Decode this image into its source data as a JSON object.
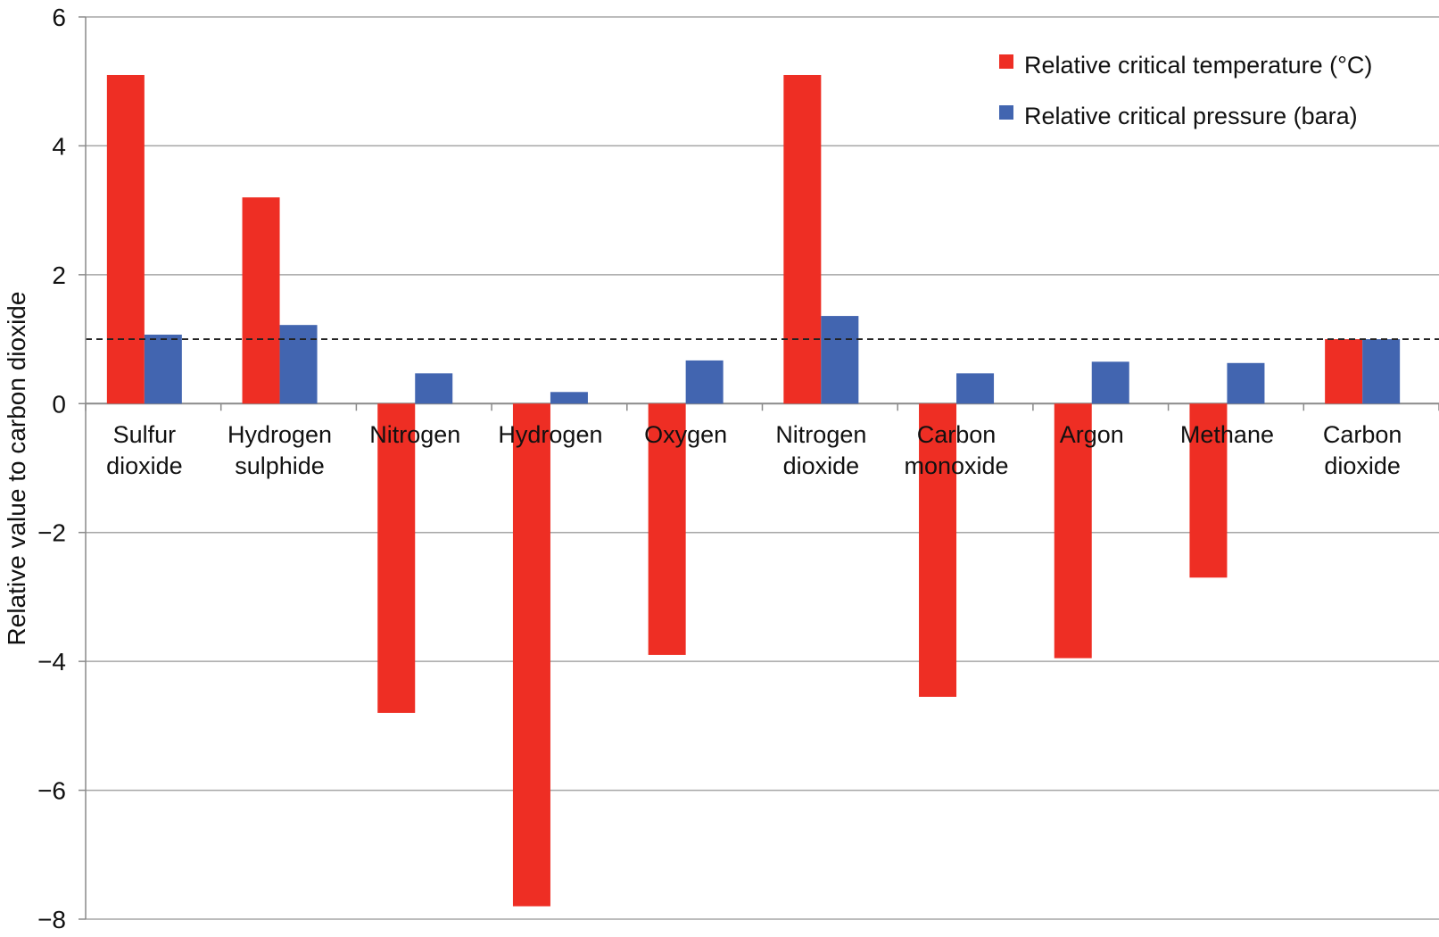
{
  "chart_data": {
    "type": "bar",
    "title": "",
    "xlabel": "",
    "ylabel": "Relative value to carbon dioxide",
    "ylim": [
      -8,
      6
    ],
    "yticks": [
      6,
      4,
      2,
      0,
      -2,
      -4,
      -6,
      -8
    ],
    "ytick_labels": [
      "6",
      "4",
      "2",
      "0",
      "−2",
      "−4",
      "−6",
      "−8"
    ],
    "grid": true,
    "legend_position": "top-right",
    "reference_line": {
      "value": 1,
      "style": "dashed"
    },
    "categories": [
      [
        "Sulfur",
        "dioxide"
      ],
      [
        "Hydrogen",
        "sulphide"
      ],
      [
        "Nitrogen"
      ],
      [
        "Hydrogen"
      ],
      [
        "Oxygen"
      ],
      [
        "Nitrogen",
        "dioxide"
      ],
      [
        "Carbon",
        "monoxide"
      ],
      [
        "Argon"
      ],
      [
        "Methane"
      ],
      [
        "Carbon",
        "dioxide"
      ]
    ],
    "series": [
      {
        "name": "Relative critical temperature (°C)",
        "color": "#ee2e24",
        "values": [
          5.1,
          3.2,
          -4.8,
          -7.8,
          -3.9,
          5.1,
          -4.55,
          -3.95,
          -2.7,
          1.0
        ]
      },
      {
        "name": "Relative critical pressure (bara)",
        "color": "#4265b0",
        "values": [
          1.07,
          1.22,
          0.47,
          0.18,
          0.67,
          1.36,
          0.47,
          0.65,
          0.63,
          1.0
        ]
      }
    ]
  }
}
